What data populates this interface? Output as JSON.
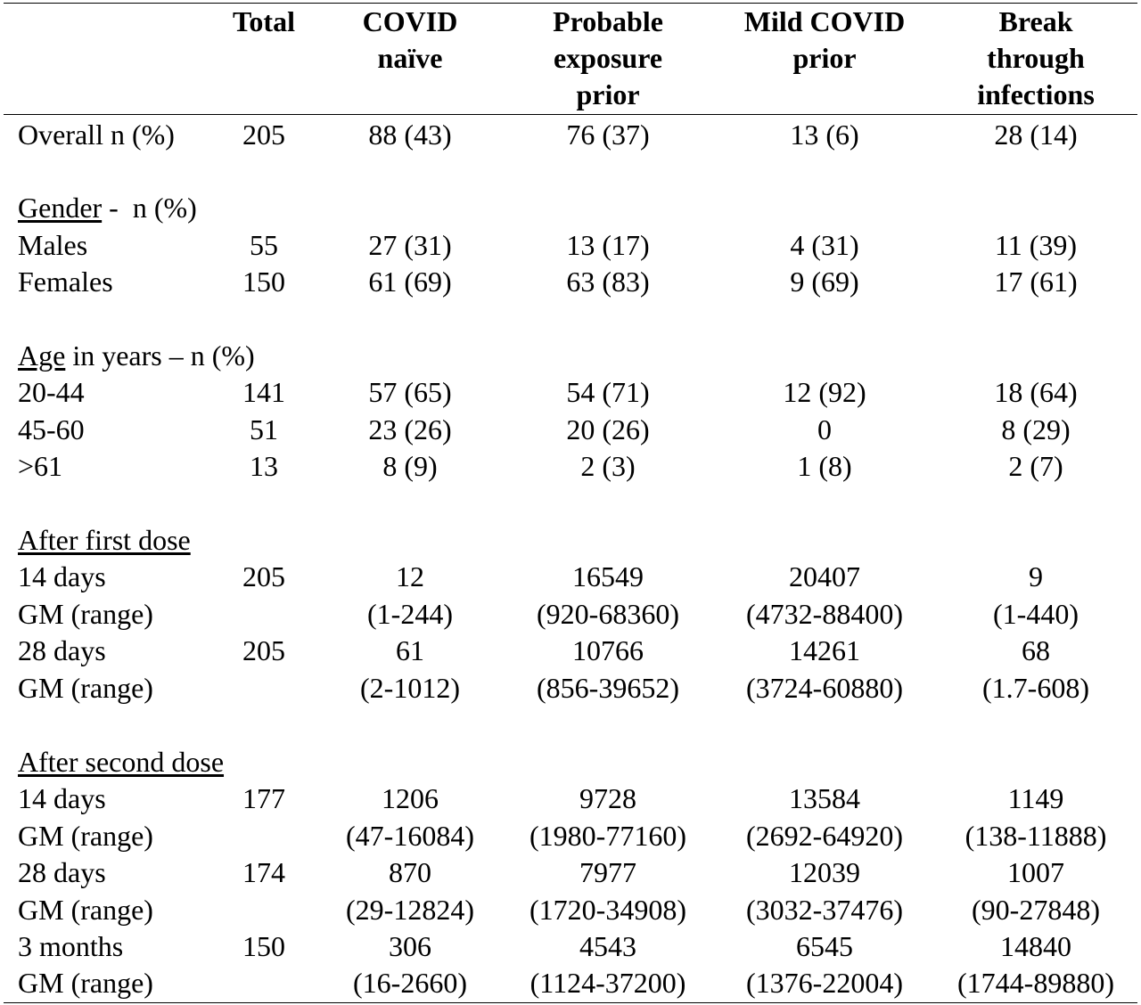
{
  "headers": {
    "total": [
      "Total"
    ],
    "naive": [
      "COVID",
      "naïve"
    ],
    "probable": [
      "Probable",
      "exposure",
      "prior"
    ],
    "mild": [
      "Mild COVID",
      "prior"
    ],
    "breakthrough": [
      "Break",
      "through",
      "infections"
    ]
  },
  "rows": [
    {
      "label": "Overall n (%)",
      "total": "205",
      "naive": "88 (43)",
      "probable": "76 (37)",
      "mild": "13 (6)",
      "breakthrough": "28 (14)"
    },
    {
      "section_u": "Gender",
      "section_rest": " -  n (%)"
    },
    {
      "label": "Males",
      "total": "55",
      "naive": "27 (31)",
      "probable": "13 (17)",
      "mild": "4 (31)",
      "breakthrough": "11 (39)"
    },
    {
      "label": "Females",
      "total": "150",
      "naive": "61 (69)",
      "probable": "63 (83)",
      "mild": "9 (69)",
      "breakthrough": "17 (61)"
    },
    {
      "section_u": "Age",
      "section_rest": " in years – n (%)"
    },
    {
      "label": "20-44",
      "total": "141",
      "naive": "57 (65)",
      "probable": "54 (71)",
      "mild": "12 (92)",
      "breakthrough": "18 (64)"
    },
    {
      "label": "45-60",
      "total": "51",
      "naive": "23 (26)",
      "probable": "20 (26)",
      "mild": "0",
      "breakthrough": "8 (29)"
    },
    {
      "label": ">61",
      "total": "13",
      "naive": "8 (9)",
      "probable": "2 (3)",
      "mild": "1 (8)",
      "breakthrough": "2 (7)"
    },
    {
      "section_u": "After first dose",
      "section_rest": ""
    },
    {
      "label": "14 days",
      "total": "205",
      "naive": "12",
      "probable": "16549",
      "mild": "20407",
      "breakthrough": "9"
    },
    {
      "label": "GM (range)",
      "total": "",
      "naive": "(1-244)",
      "probable": "(920-68360)",
      "mild": "(4732-88400)",
      "breakthrough": "(1-440)"
    },
    {
      "label": "28 days",
      "total": "205",
      "naive": "61",
      "probable": "10766",
      "mild": "14261",
      "breakthrough": "68"
    },
    {
      "label": "GM (range)",
      "total": "",
      "naive": "(2-1012)",
      "probable": "(856-39652)",
      "mild": "(3724-60880)",
      "breakthrough": "(1.7-608)"
    },
    {
      "section_u": "After second dose",
      "section_rest": ""
    },
    {
      "label": "14 days",
      "total": "177",
      "naive": "1206",
      "probable": "9728",
      "mild": "13584",
      "breakthrough": "1149"
    },
    {
      "label": "GM (range)",
      "total": "",
      "naive": "(47-16084)",
      "probable": "(1980-77160)",
      "mild": "(2692-64920)",
      "breakthrough": "(138-11888)"
    },
    {
      "label": "28 days",
      "total": "174",
      "naive": "870",
      "probable": "7977",
      "mild": "12039",
      "breakthrough": "1007"
    },
    {
      "label": "GM (range)",
      "total": "",
      "naive": "(29-12824)",
      "probable": "(1720-34908)",
      "mild": "(3032-37476)",
      "breakthrough": "(90-27848)"
    },
    {
      "label": "3 months",
      "total": "150",
      "naive": "306",
      "probable": "4543",
      "mild": "6545",
      "breakthrough": "14840"
    },
    {
      "label": "GM (range)",
      "total": "",
      "naive": "(16-2660)",
      "probable": "(1124-37200)",
      "mild": "(1376-22004)",
      "breakthrough": "(1744-89880)"
    }
  ]
}
